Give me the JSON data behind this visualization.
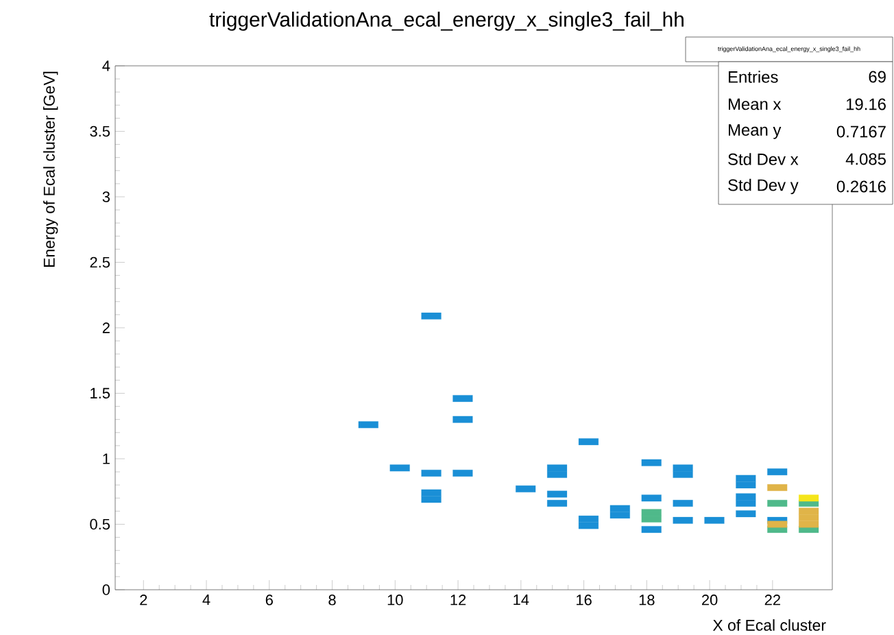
{
  "chart_data": {
    "type": "scatter",
    "title": "triggerValidationAna_ecal_energy_x_single3_fail_hh",
    "xlabel": "X of Ecal cluster",
    "ylabel": "Energy of Ecal cluster [GeV]",
    "xlim": [
      1.1,
      23.9
    ],
    "xticks": [
      2,
      4,
      6,
      8,
      10,
      12,
      14,
      16,
      18,
      20,
      22
    ],
    "ylim": [
      0,
      4
    ],
    "yticks": [
      0,
      0.5,
      1,
      1.5,
      2,
      2.5,
      3,
      3.5,
      4
    ],
    "grid": false,
    "marker": "square",
    "series": [
      {
        "color": "#1a8fd6",
        "x": [
          11.15,
          12.15,
          12.15,
          9.15,
          10.15,
          11.15,
          12.15,
          11.15,
          11.15,
          14.15,
          15.15,
          15.15,
          15.15,
          15.15,
          16.15,
          16.15,
          16.15,
          17.15,
          17.15,
          18.15,
          18.15,
          18.15,
          19.15,
          19.15,
          19.15,
          19.15,
          20.15,
          21.15,
          21.15,
          21.15,
          21.15,
          21.15,
          22.15,
          22.15
        ],
        "values": [
          2.09,
          1.46,
          1.3,
          1.26,
          0.93,
          0.89,
          0.89,
          0.69,
          0.74,
          0.77,
          0.88,
          0.93,
          0.73,
          0.66,
          1.13,
          0.49,
          0.54,
          0.57,
          0.62,
          0.97,
          0.7,
          0.46,
          0.88,
          0.93,
          0.66,
          0.53,
          0.53,
          0.8,
          0.85,
          0.66,
          0.71,
          0.58,
          0.9,
          0.53
        ]
      },
      {
        "color": "#4fb98a",
        "x": [
          18.15,
          18.15,
          22.15,
          22.15,
          23.15,
          23.15
        ],
        "values": [
          0.54,
          0.59,
          0.66,
          0.46,
          0.66,
          0.46
        ]
      },
      {
        "color": "#e0b448",
        "x": [
          22.15,
          22.15,
          23.15,
          23.15,
          23.15
        ],
        "values": [
          0.78,
          0.5,
          0.6,
          0.55,
          0.5
        ]
      },
      {
        "color": "#f5e51a",
        "x": [
          23.15
        ],
        "values": [
          0.7
        ]
      }
    ],
    "annotations": [
      "triggerValidationAna_ecal_energy_x_single3_fail_hh",
      "Entries",
      "69",
      "Mean x",
      "19.16",
      "Mean y",
      "0.7167",
      "Std Dev x",
      "4.085",
      "Std Dev y",
      "0.2616"
    ]
  }
}
